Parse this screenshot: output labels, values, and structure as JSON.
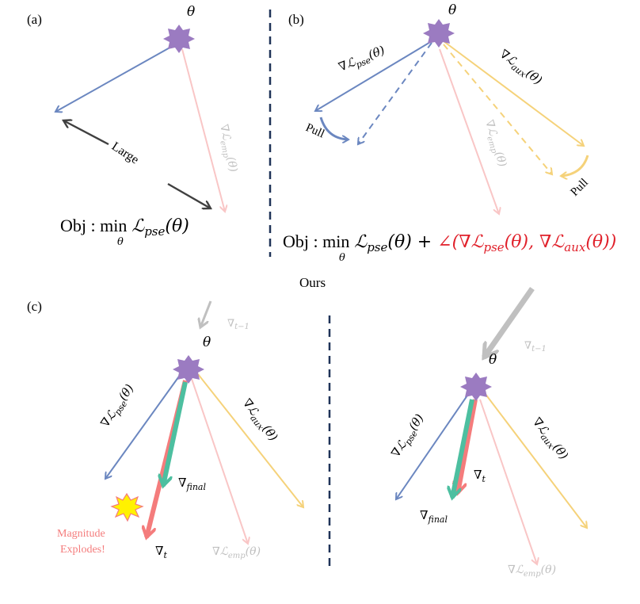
{
  "panel_a": {
    "tag": "(a)",
    "theta": "θ",
    "large": "Large",
    "grad_emp": "∇ℒ",
    "grad_emp_sub": "emp",
    "grad_emp_arg": "(θ)",
    "obj_prefix": "Obj : min",
    "obj_under": "θ",
    "obj_L": "ℒ",
    "obj_sub": "pse",
    "obj_arg": "(θ)"
  },
  "panel_b": {
    "tag": "(b)",
    "theta": "θ",
    "grad_pse": "∇ℒ",
    "grad_pse_sub": "pse",
    "grad_pse_arg": "(θ)",
    "grad_aux": "∇ℒ",
    "grad_aux_sub": "aux",
    "grad_aux_arg": "(θ)",
    "grad_emp": "∇ℒ",
    "grad_emp_sub": "emp",
    "grad_emp_arg": "(θ)",
    "pull_left": "Pull",
    "pull_right": "Pull",
    "obj_prefix": "Obj : min",
    "obj_under": "θ",
    "obj_L": "ℒ",
    "obj_sub": "pse",
    "obj_arg": "(θ) + ",
    "obj_red": "∠(∇ℒ",
    "obj_red_sub1": "pse",
    "obj_red_mid": "(θ), ∇ℒ",
    "obj_red_sub2": "aux",
    "obj_red_end": "(θ))"
  },
  "ours": "Ours",
  "panel_c_left": {
    "tag": "(c)",
    "theta": "θ",
    "grad_prev": "∇",
    "grad_prev_sub": "t−1",
    "grad_pse": "∇ℒ",
    "grad_pse_sub": "pse",
    "grad_pse_arg": "(θ)",
    "grad_aux": "∇ℒ",
    "grad_aux_sub": "aux",
    "grad_aux_arg": "(θ)",
    "grad_emp": "∇ℒ",
    "grad_emp_sub": "emp",
    "grad_emp_arg": "(θ)",
    "grad_final": "∇",
    "grad_final_sub": "final",
    "grad_t": "∇",
    "grad_t_sub": "t",
    "warn_line1": "Magnitude",
    "warn_line2": "Explodes!"
  },
  "panel_c_right": {
    "theta": "θ",
    "grad_prev": "∇",
    "grad_prev_sub": "t−1",
    "grad_pse": "∇ℒ",
    "grad_pse_sub": "pse",
    "grad_pse_arg": "(θ)",
    "grad_aux": "∇ℒ",
    "grad_aux_sub": "aux",
    "grad_aux_arg": "(θ)",
    "grad_emp": "∇ℒ",
    "grad_emp_sub": "emp",
    "grad_emp_arg": "(θ)",
    "grad_final": "∇",
    "grad_final_sub": "final",
    "grad_t": "∇",
    "grad_t_sub": "t"
  },
  "colors": {
    "blue": "#6b87c0",
    "yellow": "#f5d27a",
    "pink": "#f9c6c6",
    "green": "#4dbfa0",
    "red": "#f47c7c",
    "purple": "#9b7bc1",
    "grey": "#c0c0c0",
    "dark": "#404040",
    "navy": "#1f3358",
    "obj_red": "#e0202a"
  }
}
